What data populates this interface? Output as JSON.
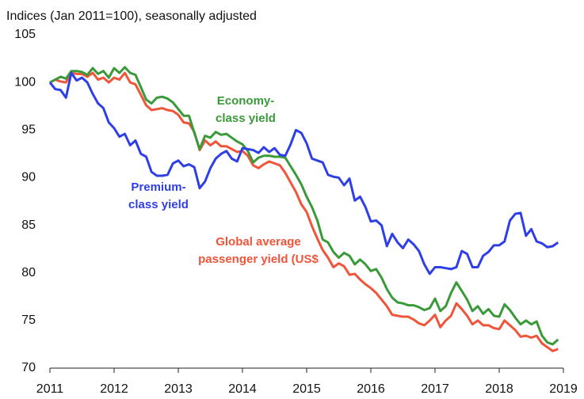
{
  "chart_data": {
    "type": "line",
    "title": "Indices (Jan 2011=100), seasonally adjusted",
    "x": [
      2011,
      2011.083,
      2011.167,
      2011.25,
      2011.333,
      2011.417,
      2011.5,
      2011.583,
      2011.667,
      2011.75,
      2011.833,
      2011.917,
      2012,
      2012.083,
      2012.167,
      2012.25,
      2012.333,
      2012.417,
      2012.5,
      2012.583,
      2012.667,
      2012.75,
      2012.833,
      2012.917,
      2013,
      2013.083,
      2013.167,
      2013.25,
      2013.333,
      2013.417,
      2013.5,
      2013.583,
      2013.667,
      2013.75,
      2013.833,
      2013.917,
      2014,
      2014.083,
      2014.167,
      2014.25,
      2014.333,
      2014.417,
      2014.5,
      2014.583,
      2014.667,
      2014.75,
      2014.833,
      2014.917,
      2015,
      2015.083,
      2015.167,
      2015.25,
      2015.333,
      2015.417,
      2015.5,
      2015.583,
      2015.667,
      2015.75,
      2015.833,
      2015.917,
      2016,
      2016.083,
      2016.167,
      2016.25,
      2016.333,
      2016.417,
      2016.5,
      2016.583,
      2016.667,
      2016.75,
      2016.833,
      2016.917,
      2017,
      2017.083,
      2017.167,
      2017.25,
      2017.333,
      2017.417,
      2017.5,
      2017.583,
      2017.667,
      2017.75,
      2017.833,
      2017.917,
      2018,
      2018.083,
      2018.167,
      2018.25,
      2018.333,
      2018.417,
      2018.5,
      2018.583,
      2018.667,
      2018.75,
      2018.833,
      2018.917
    ],
    "series": [
      {
        "name": "Economy-class yield",
        "label": [
          "Economy-",
          "class yield"
        ],
        "color": "#3a9a3a",
        "values": [
          100,
          100.3,
          100.6,
          100.4,
          101.2,
          101.2,
          101.1,
          100.8,
          101.5,
          100.9,
          101.2,
          100.5,
          101.5,
          101,
          101.6,
          101,
          100.8,
          99.5,
          98.2,
          97.8,
          98.4,
          98.5,
          98.3,
          97.9,
          97.2,
          96.5,
          96.5,
          94.7,
          93,
          94.4,
          94.2,
          94.8,
          94.5,
          94.6,
          94.2,
          93.8,
          93.5,
          92.8,
          91.6,
          92.1,
          92.3,
          92.3,
          92.2,
          92.2,
          92.1,
          91.2,
          90.3,
          89.3,
          88,
          86.9,
          85.5,
          83.5,
          83.2,
          82.2,
          81.6,
          82.1,
          81.8,
          80.9,
          81.4,
          80.9,
          80.2,
          80.4,
          79.5,
          78.3,
          77.4,
          76.9,
          76.8,
          76.6,
          76.6,
          76.4,
          76.1,
          76.3,
          77.3,
          76,
          76.5,
          77.9,
          79,
          78.1,
          77.2,
          76,
          76.5,
          75.7,
          76.2,
          75.5,
          75.4,
          76.7,
          76.1,
          75.3,
          74.6,
          75,
          74.6,
          74.9,
          73.4,
          72.7,
          72.5,
          73
        ]
      },
      {
        "name": "Premium-class yield",
        "label": [
          "Premium-",
          "class yield"
        ],
        "color": "#2f3fe6",
        "values": [
          100,
          99.3,
          99.2,
          98.4,
          101,
          100.2,
          100.5,
          100,
          98.8,
          97.8,
          97.3,
          95.8,
          95.2,
          94.3,
          94.6,
          93.4,
          93.9,
          92.5,
          92.2,
          90.6,
          90.2,
          90.2,
          90.3,
          91.5,
          91.8,
          91.2,
          91.4,
          91.1,
          88.9,
          89.6,
          91,
          92,
          92.5,
          92.8,
          92,
          91.7,
          93.1,
          93,
          92.9,
          92.6,
          93.2,
          92.7,
          93.1,
          92.4,
          92.3,
          93.5,
          95,
          94.7,
          93.6,
          92,
          91.8,
          91.6,
          90.3,
          90.1,
          90,
          89.2,
          89.9,
          87.6,
          88,
          86.9,
          85.4,
          85.5,
          85,
          82.8,
          84.1,
          83.2,
          82.6,
          83.5,
          83,
          82.3,
          80.9,
          79.9,
          80.6,
          80.6,
          80.5,
          80.4,
          80.6,
          82.3,
          82,
          80.6,
          80.6,
          81.8,
          82.2,
          82.9,
          82.9,
          83.3,
          85.5,
          86.2,
          86.3,
          83.9,
          84.6,
          83.3,
          83.1,
          82.7,
          82.8,
          83.2
        ]
      },
      {
        "name": "Global average passenger yield (US$",
        "label": [
          "Global average",
          "passenger yield (US$"
        ],
        "color": "#f0553a",
        "values": [
          100,
          100.3,
          100.1,
          100,
          101,
          100.9,
          100.9,
          100.6,
          101,
          100.3,
          100.5,
          100,
          100.5,
          100.3,
          101,
          100,
          99.8,
          98.7,
          97.6,
          97.1,
          97.2,
          97.3,
          97.1,
          97,
          96.6,
          95.8,
          95.7,
          94.8,
          92.9,
          93.9,
          93.4,
          93.8,
          93.3,
          93.3,
          93,
          92.7,
          92.8,
          92.3,
          91.3,
          91,
          91.4,
          91.7,
          91.5,
          91.3,
          90.5,
          89.5,
          88.5,
          87.2,
          86.4,
          84.9,
          83.6,
          82.4,
          81.6,
          80.6,
          81,
          80.7,
          79.8,
          79.9,
          79.3,
          78.8,
          78.4,
          77.9,
          77.2,
          76.5,
          75.6,
          75.5,
          75.4,
          75.4,
          75.1,
          74.7,
          74.5,
          75,
          75.6,
          74.3,
          75,
          75.5,
          76.8,
          76.2,
          75.5,
          74.6,
          75,
          74.5,
          74.5,
          74.2,
          74.1,
          75,
          74.5,
          74,
          73.3,
          73.4,
          73.2,
          73.4,
          72.6,
          72.2,
          71.8,
          72
        ]
      }
    ],
    "xlim": [
      2011,
      2019
    ],
    "xticks": [
      2011,
      2012,
      2013,
      2014,
      2015,
      2016,
      2017,
      2018,
      2019
    ],
    "ylim": [
      70,
      105
    ],
    "yticks": [
      70,
      75,
      80,
      85,
      90,
      95,
      100,
      105
    ],
    "grid": false
  }
}
